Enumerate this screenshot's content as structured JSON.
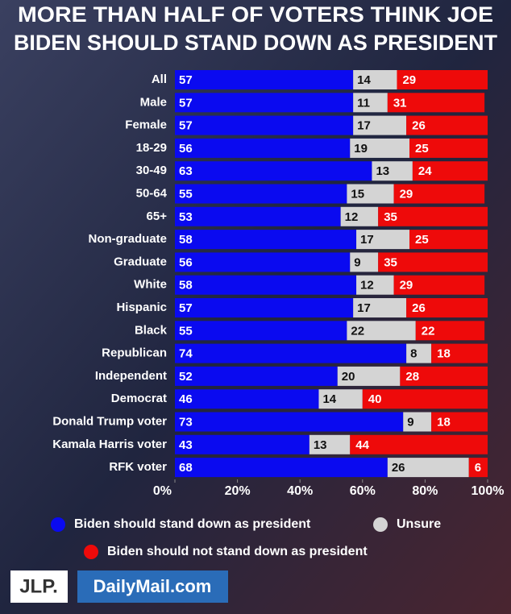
{
  "chart_data": {
    "type": "stacked-bar-horizontal",
    "title": [
      "MORE THAN HALF OF VOTERS THINK JOE",
      "BIDEN SHOULD STAND DOWN AS PRESIDENT"
    ],
    "categories": [
      "All",
      "Male",
      "Female",
      "18-29",
      "30-49",
      "50-64",
      "65+",
      "Non-graduate",
      "Graduate",
      "White",
      "Hispanic",
      "Black",
      "Republican",
      "Independent",
      "Democrat",
      "Donald Trump voter",
      "Kamala Harris voter",
      "RFK voter"
    ],
    "series": [
      {
        "name": "Biden should stand down as president",
        "color": "#0a0af0",
        "values": [
          57,
          57,
          57,
          56,
          63,
          55,
          53,
          58,
          56,
          58,
          57,
          55,
          74,
          52,
          46,
          73,
          43,
          68
        ]
      },
      {
        "name": "Unsure",
        "color": "#d4d4d4",
        "values": [
          14,
          11,
          17,
          19,
          13,
          15,
          12,
          17,
          9,
          12,
          17,
          22,
          8,
          20,
          14,
          9,
          13,
          26
        ]
      },
      {
        "name": "Biden should not stand down as president",
        "color": "#ee0a0a",
        "values": [
          29,
          31,
          26,
          25,
          24,
          29,
          35,
          25,
          35,
          29,
          26,
          22,
          18,
          28,
          40,
          18,
          44,
          6
        ]
      }
    ],
    "xlim": [
      0,
      100
    ],
    "xticks": [
      {
        "value": 0,
        "label": "0%"
      },
      {
        "value": 20,
        "label": "20%"
      },
      {
        "value": 40,
        "label": "40%"
      },
      {
        "value": 60,
        "label": "60%"
      },
      {
        "value": 80,
        "label": "80%"
      },
      {
        "value": 100,
        "label": "100%"
      }
    ],
    "logos": [
      "JLP.",
      "DailyMail.com"
    ]
  }
}
